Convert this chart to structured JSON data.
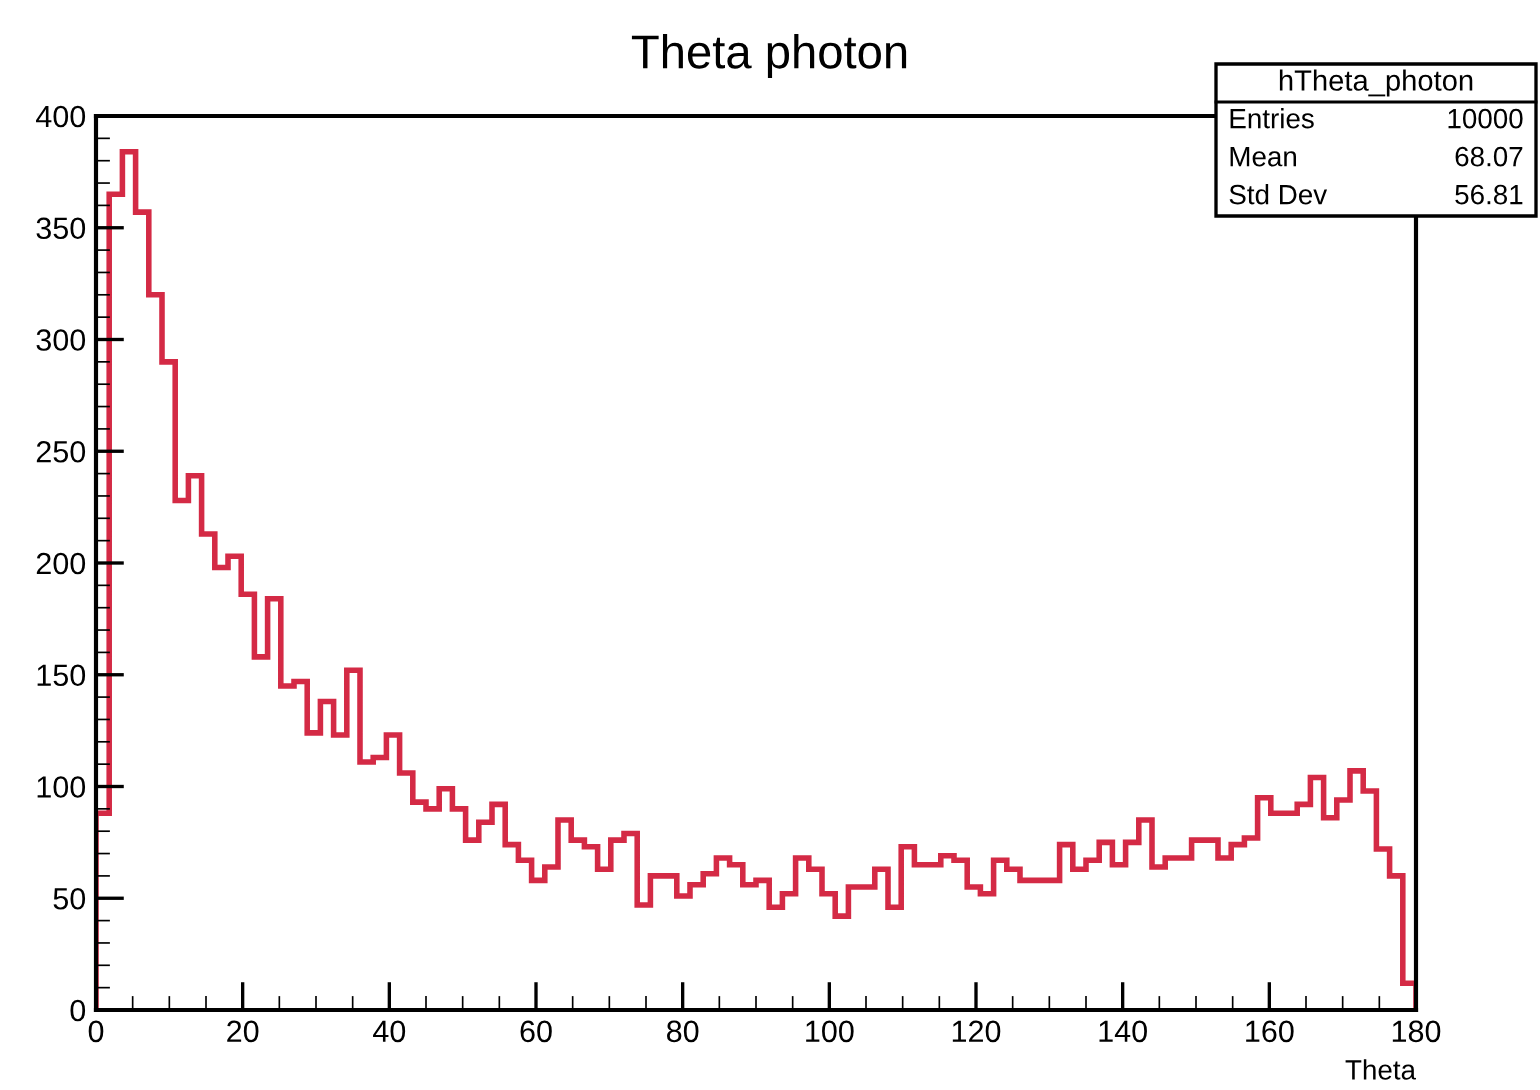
{
  "chart_data": {
    "type": "histogram",
    "title": "Theta photon",
    "xlabel": "Theta",
    "bins": [
      0,
      1.8,
      3.6,
      5.4,
      7.2,
      9,
      10.8,
      12.6,
      14.4,
      16.2,
      18,
      19.8,
      21.6,
      23.4,
      25.2,
      27,
      28.8,
      30.6,
      32.4,
      34.2,
      36,
      37.8,
      39.6,
      41.4,
      43.2,
      45,
      46.8,
      48.6,
      50.4,
      52.2,
      54,
      55.8,
      57.6,
      59.4,
      61.2,
      63,
      64.8,
      66.6,
      68.4,
      70.2,
      72,
      73.8,
      75.6,
      77.4,
      79.2,
      81,
      82.8,
      84.6,
      86.4,
      88.2,
      90,
      91.8,
      93.6,
      95.4,
      97.2,
      99,
      100.8,
      102.6,
      104.4,
      106.2,
      108,
      109.8,
      111.6,
      113.4,
      115.2,
      117,
      118.8,
      120.6,
      122.4,
      124.2,
      126,
      127.8,
      129.6,
      131.4,
      133.2,
      135,
      136.8,
      138.6,
      140.4,
      142.2,
      144,
      145.8,
      147.6,
      149.4,
      151.2,
      153,
      154.8,
      156.6,
      158.4,
      160.2,
      162,
      163.8,
      165.6,
      167.4,
      169.2,
      171,
      172.8,
      174.6,
      176.4,
      178.2,
      180
    ],
    "values": [
      88,
      365,
      384,
      357,
      320,
      290,
      228,
      239,
      213,
      198,
      203,
      186,
      158,
      184,
      145,
      147,
      124,
      138,
      123,
      152,
      111,
      113,
      123,
      106,
      93,
      90,
      99,
      90,
      76,
      84,
      92,
      74,
      67,
      58,
      64,
      85,
      76,
      73,
      63,
      76,
      79,
      47,
      60,
      60,
      51,
      56,
      61,
      68,
      65,
      56,
      58,
      46,
      52,
      68,
      63,
      52,
      42,
      55,
      55,
      63,
      46,
      73,
      65,
      65,
      69,
      67,
      55,
      52,
      67,
      63,
      58,
      58,
      58,
      74,
      63,
      67,
      75,
      65,
      75,
      85,
      64,
      68,
      68,
      76,
      76,
      68,
      74,
      77,
      95,
      88,
      88,
      92,
      104,
      86,
      94,
      107,
      98,
      72,
      60,
      12
    ],
    "color": "#d42a45",
    "xlim": [
      0,
      180
    ],
    "ylim": [
      0,
      400
    ],
    "xticks": [
      0,
      20,
      40,
      60,
      80,
      100,
      120,
      140,
      160,
      180
    ],
    "yticks": [
      0,
      50,
      100,
      150,
      200,
      250,
      300,
      350,
      400
    ],
    "grid": false,
    "annotations": [
      "hTheta_photon",
      "Entries",
      "10000",
      "Mean",
      "68.07",
      "Std Dev",
      "56.81"
    ]
  }
}
